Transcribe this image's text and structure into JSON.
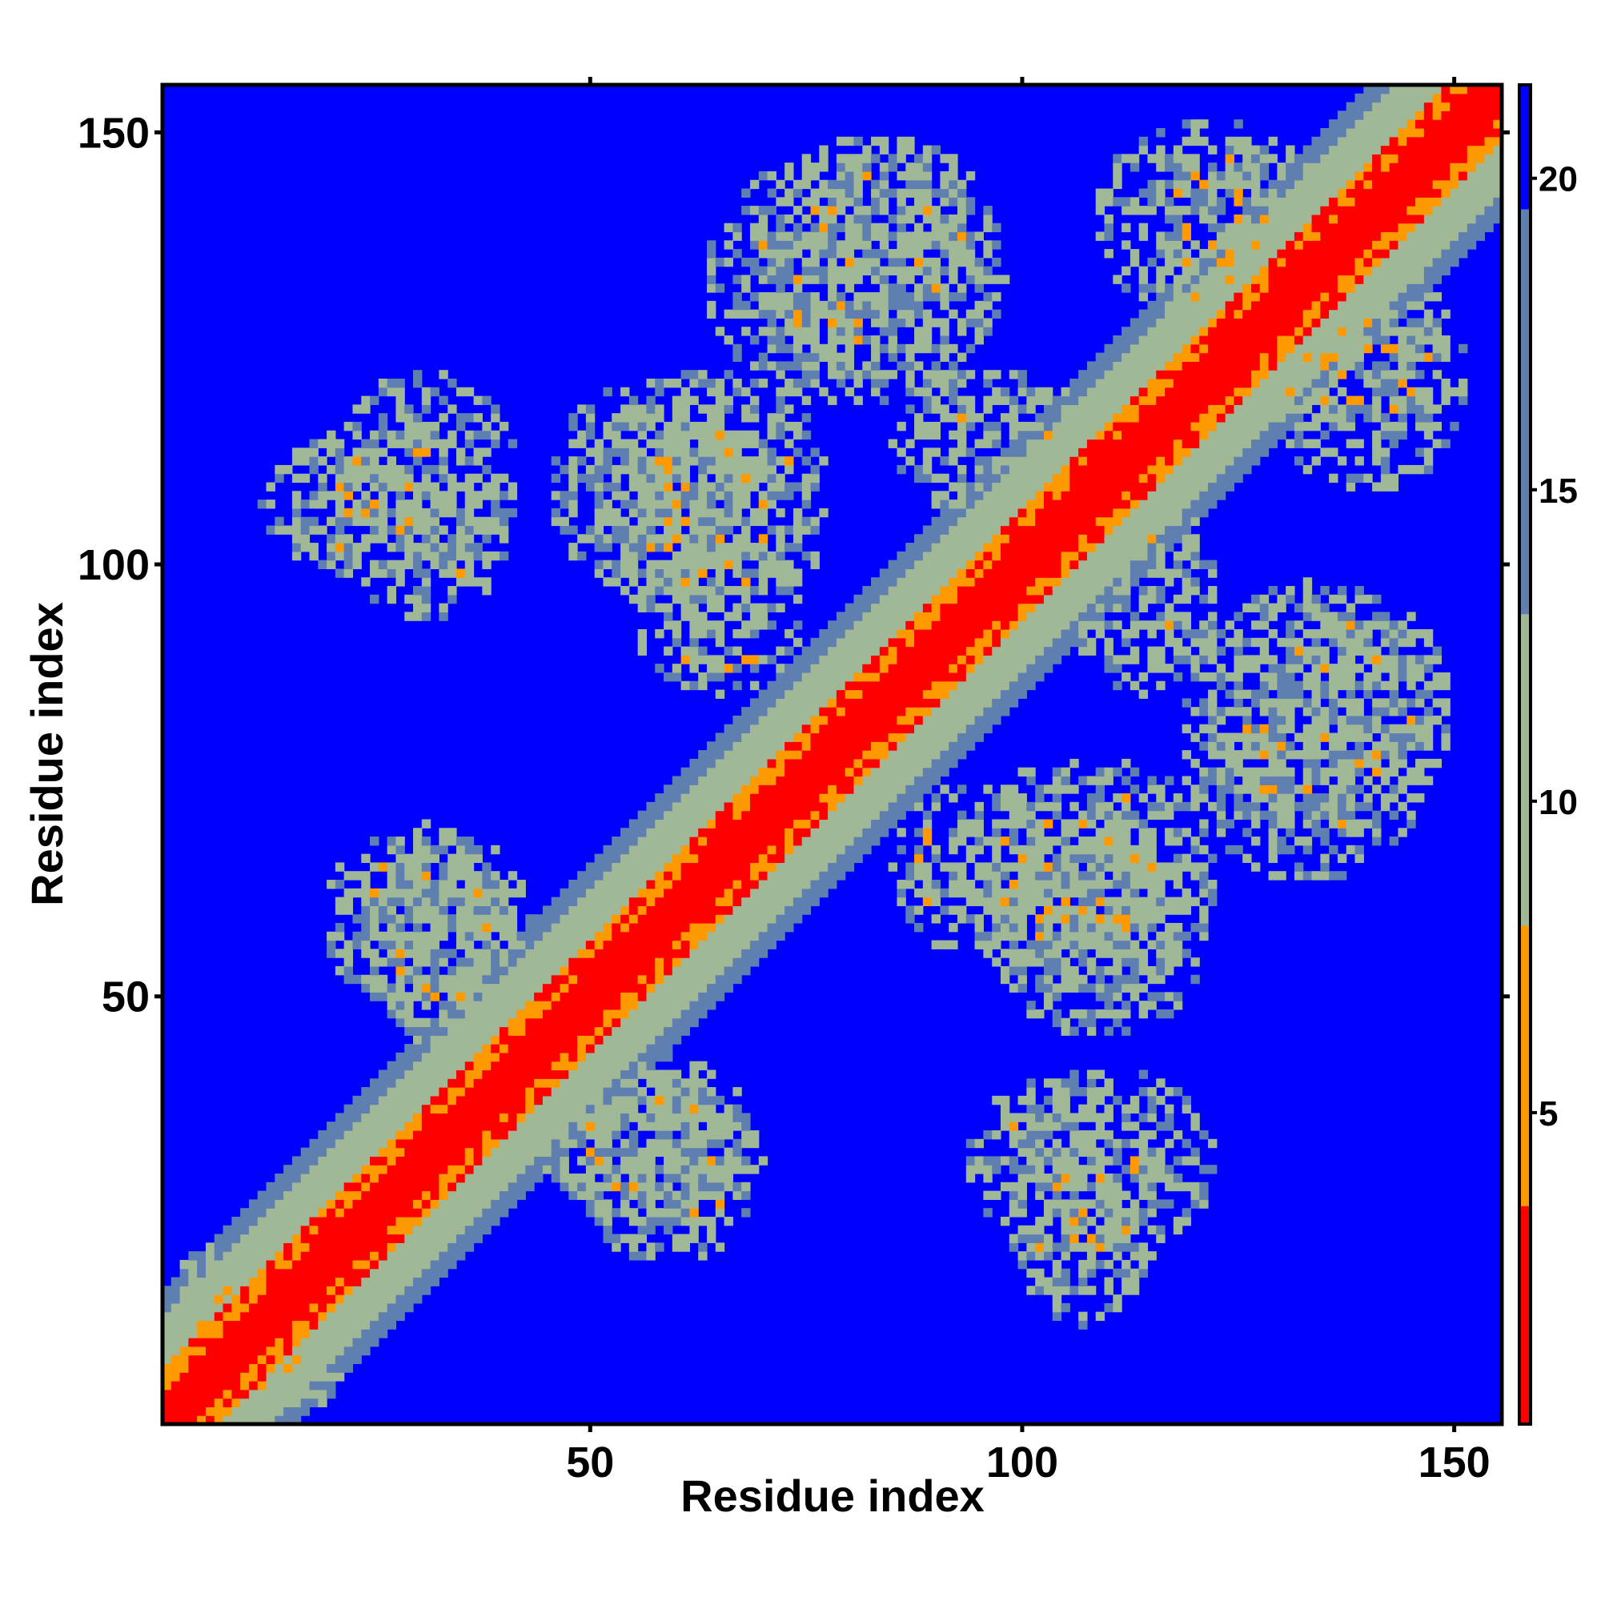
{
  "chart_data": {
    "type": "heatmap",
    "title": "",
    "xlabel": "Residue index",
    "ylabel": "Residue index",
    "xlim": [
      1,
      155
    ],
    "ylim": [
      1,
      155
    ],
    "n_residues": 155,
    "x_ticks": [
      50,
      100,
      150
    ],
    "y_ticks": [
      50,
      100,
      150
    ],
    "x_tick_labels": [
      "50",
      "100",
      "150"
    ],
    "y_tick_labels": [
      "50",
      "100",
      "150"
    ],
    "value_range": [
      0,
      21.5
    ],
    "background_value": 21.5,
    "colorbar": {
      "ticks": [
        5,
        10,
        15,
        20
      ],
      "tick_labels": [
        "5",
        "10",
        "15",
        "20"
      ],
      "colors": {
        "red": "#ff0000",
        "orange": "#ff9900",
        "sage": "#a0b896",
        "steel": "#5f7fb0",
        "blue": "#0000ff"
      },
      "breaks": [
        5,
        8,
        13,
        19.5
      ]
    },
    "diagonal_band": {
      "red_halfwidth": 3,
      "orange_halfwidth": 6,
      "sage_halfwidth": 12,
      "steel_halfwidth": 15
    },
    "contact_regions": [
      {
        "x": [
          1,
          22
        ],
        "y": [
          1,
          24
        ],
        "density": 0.6
      },
      {
        "x": [
          12,
          40
        ],
        "y": [
          98,
          116
        ],
        "density": 0.6
      },
      {
        "x": [
          45,
          72
        ],
        "y": [
          96,
          122
        ],
        "density": 0.6
      },
      {
        "x": [
          63,
          98
        ],
        "y": [
          118,
          148
        ],
        "density": 0.55
      },
      {
        "x": [
          55,
          75
        ],
        "y": [
          85,
          102
        ],
        "density": 0.5
      },
      {
        "x": [
          19,
          43
        ],
        "y": [
          48,
          70
        ],
        "density": 0.6
      },
      {
        "x": [
          44,
          68
        ],
        "y": [
          24,
          42
        ],
        "density": 0.6
      },
      {
        "x": [
          92,
          123
        ],
        "y": [
          50,
          78
        ],
        "density": 0.6
      },
      {
        "x": [
          93,
          123
        ],
        "y": [
          20,
          42
        ],
        "density": 0.55
      },
      {
        "x": [
          105,
          123
        ],
        "y": [
          85,
          108
        ],
        "density": 0.55
      },
      {
        "x": [
          108,
          135
        ],
        "y": [
          128,
          152
        ],
        "density": 0.5
      },
      {
        "x": [
          125,
          152
        ],
        "y": [
          115,
          130
        ],
        "density": 0.5
      },
      {
        "x": [
          122,
          150
        ],
        "y": [
          68,
          98
        ],
        "density": 0.55
      },
      {
        "x": [
          143,
          155
        ],
        "y": [
          140,
          155
        ],
        "density": 0.5
      }
    ]
  }
}
